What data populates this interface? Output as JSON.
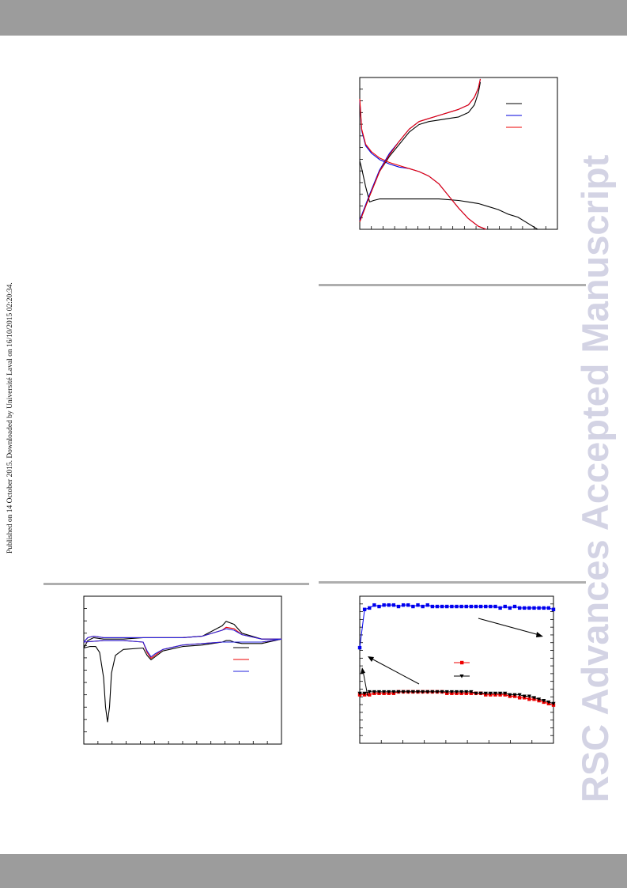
{
  "header_band_color": "#9c9c9c",
  "footer_band_color": "#9c9c9c",
  "side_note": "Published on 14 October 2015. Downloaded by Université Laval on 16/10/2015 02:20:34.",
  "watermark": "RSC Advances Accepted Manuscript",
  "chart_data": [
    {
      "type": "line",
      "position_note": "top-right charge/discharge voltage profiles",
      "title": "",
      "xlabel": "",
      "ylabel": "",
      "xlim": [
        0,
        1
      ],
      "ylim": [
        0,
        1
      ],
      "legend": "top-right",
      "legend_entries": [
        "",
        "",
        ""
      ],
      "series": [
        {
          "color": "#000000",
          "label": "",
          "x": [
            0.0,
            0.01,
            0.03,
            0.05,
            0.07,
            0.1,
            0.2,
            0.3,
            0.4,
            0.5,
            0.55,
            0.6,
            0.65,
            0.7,
            0.75,
            0.8,
            0.85,
            0.9
          ],
          "y": [
            0.45,
            0.4,
            0.28,
            0.18,
            0.19,
            0.2,
            0.2,
            0.2,
            0.2,
            0.19,
            0.18,
            0.17,
            0.15,
            0.13,
            0.1,
            0.08,
            0.04,
            0.0
          ]
        },
        {
          "color": "#0000dd",
          "label": "",
          "x": [
            0.0,
            0.01,
            0.03,
            0.06,
            0.1,
            0.15,
            0.2,
            0.25,
            0.3,
            0.35,
            0.4,
            0.45,
            0.5,
            0.55,
            0.6,
            0.64
          ],
          "y": [
            0.85,
            0.65,
            0.55,
            0.5,
            0.46,
            0.43,
            0.41,
            0.4,
            0.38,
            0.35,
            0.3,
            0.22,
            0.14,
            0.07,
            0.02,
            0.0
          ]
        },
        {
          "color": "#ee0000",
          "label": "",
          "x": [
            0.0,
            0.01,
            0.03,
            0.06,
            0.1,
            0.15,
            0.2,
            0.25,
            0.3,
            0.35,
            0.4,
            0.45,
            0.5,
            0.55,
            0.6,
            0.64
          ],
          "y": [
            0.86,
            0.66,
            0.56,
            0.51,
            0.47,
            0.44,
            0.42,
            0.4,
            0.38,
            0.35,
            0.3,
            0.22,
            0.14,
            0.07,
            0.02,
            0.0
          ]
        },
        {
          "color": "#000000",
          "label": "",
          "x": [
            0.0,
            0.05,
            0.1,
            0.15,
            0.2,
            0.25,
            0.3,
            0.35,
            0.4,
            0.45,
            0.5,
            0.55,
            0.58,
            0.6,
            0.61
          ],
          "y": [
            0.05,
            0.22,
            0.38,
            0.48,
            0.56,
            0.64,
            0.69,
            0.71,
            0.72,
            0.73,
            0.74,
            0.77,
            0.82,
            0.9,
            0.97
          ]
        },
        {
          "color": "#0000dd",
          "label": "",
          "x": [
            0.0,
            0.05,
            0.1,
            0.15,
            0.2,
            0.25,
            0.3,
            0.35,
            0.4,
            0.45,
            0.5,
            0.55,
            0.58,
            0.6,
            0.61
          ],
          "y": [
            0.06,
            0.23,
            0.39,
            0.5,
            0.58,
            0.66,
            0.71,
            0.73,
            0.75,
            0.77,
            0.79,
            0.82,
            0.87,
            0.93,
            0.99
          ]
        },
        {
          "color": "#ee0000",
          "label": "",
          "x": [
            0.0,
            0.05,
            0.1,
            0.15,
            0.2,
            0.25,
            0.3,
            0.35,
            0.4,
            0.45,
            0.5,
            0.55,
            0.58,
            0.6,
            0.61
          ],
          "y": [
            0.05,
            0.22,
            0.38,
            0.49,
            0.58,
            0.66,
            0.71,
            0.73,
            0.75,
            0.77,
            0.79,
            0.82,
            0.87,
            0.93,
            0.99
          ]
        }
      ]
    },
    {
      "type": "line",
      "position_note": "bottom-left cyclic voltammogram",
      "title": "",
      "xlabel": "",
      "ylabel": "",
      "xlim": [
        0,
        1
      ],
      "ylim": [
        0,
        1
      ],
      "legend": "right",
      "legend_entries": [
        "",
        "",
        ""
      ],
      "series": [
        {
          "color": "#000000",
          "label": "",
          "x": [
            0.0,
            0.03,
            0.06,
            0.08,
            0.1,
            0.11,
            0.12,
            0.13,
            0.14,
            0.16,
            0.2,
            0.3,
            0.32,
            0.34,
            0.36,
            0.4,
            0.5,
            0.6,
            0.65,
            0.7,
            0.72,
            0.74,
            0.76,
            0.8,
            0.9,
            1.0,
            0.9,
            0.8,
            0.76,
            0.72,
            0.7,
            0.6,
            0.5,
            0.4,
            0.3,
            0.2,
            0.1,
            0.05,
            0.02,
            0.0
          ],
          "y": [
            0.65,
            0.66,
            0.66,
            0.62,
            0.45,
            0.25,
            0.15,
            0.25,
            0.48,
            0.6,
            0.64,
            0.65,
            0.6,
            0.57,
            0.59,
            0.63,
            0.66,
            0.67,
            0.68,
            0.69,
            0.7,
            0.7,
            0.69,
            0.68,
            0.68,
            0.71,
            0.71,
            0.75,
            0.81,
            0.83,
            0.8,
            0.73,
            0.72,
            0.72,
            0.72,
            0.71,
            0.71,
            0.72,
            0.7,
            0.65
          ]
        },
        {
          "color": "#ee0000",
          "label": "",
          "x": [
            0.0,
            0.1,
            0.2,
            0.3,
            0.32,
            0.34,
            0.36,
            0.4,
            0.5,
            0.6,
            0.7,
            0.8,
            0.9,
            1.0,
            0.9,
            0.8,
            0.76,
            0.72,
            0.7,
            0.6,
            0.5,
            0.4,
            0.3,
            0.2,
            0.1,
            0.05,
            0.02,
            0.0
          ],
          "y": [
            0.69,
            0.7,
            0.7,
            0.69,
            0.62,
            0.58,
            0.6,
            0.64,
            0.67,
            0.68,
            0.69,
            0.69,
            0.69,
            0.71,
            0.71,
            0.74,
            0.78,
            0.79,
            0.77,
            0.73,
            0.72,
            0.72,
            0.72,
            0.72,
            0.72,
            0.73,
            0.72,
            0.69
          ]
        },
        {
          "color": "#2222dd",
          "label": "",
          "x": [
            0.0,
            0.1,
            0.2,
            0.3,
            0.32,
            0.34,
            0.36,
            0.4,
            0.5,
            0.6,
            0.7,
            0.8,
            0.9,
            1.0,
            0.9,
            0.8,
            0.76,
            0.72,
            0.7,
            0.6,
            0.5,
            0.4,
            0.3,
            0.2,
            0.1,
            0.05,
            0.02,
            0.0
          ],
          "y": [
            0.69,
            0.7,
            0.7,
            0.69,
            0.63,
            0.59,
            0.61,
            0.64,
            0.67,
            0.68,
            0.69,
            0.69,
            0.69,
            0.71,
            0.71,
            0.74,
            0.77,
            0.78,
            0.77,
            0.73,
            0.72,
            0.72,
            0.72,
            0.72,
            0.72,
            0.73,
            0.72,
            0.69
          ]
        }
      ]
    },
    {
      "type": "scatter",
      "position_note": "bottom-right cycling performance with coulombic efficiency",
      "title": "",
      "xlabel": "",
      "ylabel": "",
      "xlim": [
        0,
        40
      ],
      "ylim": [
        0,
        1
      ],
      "legend": "center-right",
      "legend_entries": [
        "",
        ""
      ],
      "series": [
        {
          "color": "#0000ee",
          "marker": "square",
          "label": "",
          "x": [
            0,
            1,
            2,
            3,
            4,
            5,
            6,
            7,
            8,
            9,
            10,
            11,
            12,
            13,
            14,
            15,
            16,
            17,
            18,
            19,
            20,
            21,
            22,
            23,
            24,
            25,
            26,
            27,
            28,
            29,
            30,
            31,
            32,
            33,
            34,
            35,
            36,
            37,
            38,
            39,
            40
          ],
          "y": [
            0.65,
            0.91,
            0.92,
            0.94,
            0.93,
            0.94,
            0.94,
            0.94,
            0.93,
            0.94,
            0.94,
            0.93,
            0.94,
            0.93,
            0.94,
            0.93,
            0.93,
            0.93,
            0.93,
            0.93,
            0.93,
            0.93,
            0.93,
            0.93,
            0.93,
            0.93,
            0.93,
            0.93,
            0.93,
            0.92,
            0.93,
            0.92,
            0.93,
            0.92,
            0.92,
            0.92,
            0.92,
            0.92,
            0.92,
            0.92,
            0.91
          ]
        },
        {
          "color": "#ee0000",
          "marker": "square",
          "label": "",
          "x": [
            0,
            1,
            2,
            3,
            4,
            5,
            6,
            7,
            8,
            9,
            10,
            11,
            12,
            13,
            14,
            15,
            16,
            17,
            18,
            19,
            20,
            21,
            22,
            23,
            24,
            25,
            26,
            27,
            28,
            29,
            30,
            31,
            32,
            33,
            34,
            35,
            36,
            37,
            38,
            39,
            40
          ],
          "y": [
            0.33,
            0.33,
            0.33,
            0.34,
            0.34,
            0.34,
            0.34,
            0.34,
            0.35,
            0.35,
            0.35,
            0.35,
            0.35,
            0.35,
            0.35,
            0.35,
            0.35,
            0.35,
            0.34,
            0.34,
            0.34,
            0.34,
            0.34,
            0.34,
            0.34,
            0.34,
            0.33,
            0.33,
            0.33,
            0.33,
            0.33,
            0.32,
            0.32,
            0.31,
            0.31,
            0.3,
            0.3,
            0.29,
            0.28,
            0.27,
            0.26
          ]
        },
        {
          "color": "#000000",
          "marker": "triangle-down",
          "label": "",
          "x": [
            0,
            1,
            2,
            3,
            4,
            5,
            6,
            7,
            8,
            9,
            10,
            11,
            12,
            13,
            14,
            15,
            16,
            17,
            18,
            19,
            20,
            21,
            22,
            23,
            24,
            25,
            26,
            27,
            28,
            29,
            30,
            31,
            32,
            33,
            34,
            35,
            36,
            37,
            38,
            39,
            40
          ],
          "y": [
            0.34,
            0.34,
            0.35,
            0.35,
            0.35,
            0.35,
            0.35,
            0.35,
            0.35,
            0.35,
            0.35,
            0.35,
            0.35,
            0.35,
            0.35,
            0.35,
            0.35,
            0.35,
            0.35,
            0.35,
            0.35,
            0.35,
            0.35,
            0.35,
            0.34,
            0.34,
            0.34,
            0.34,
            0.34,
            0.34,
            0.34,
            0.33,
            0.33,
            0.33,
            0.32,
            0.32,
            0.31,
            0.3,
            0.29,
            0.28,
            0.27
          ]
        }
      ]
    }
  ]
}
